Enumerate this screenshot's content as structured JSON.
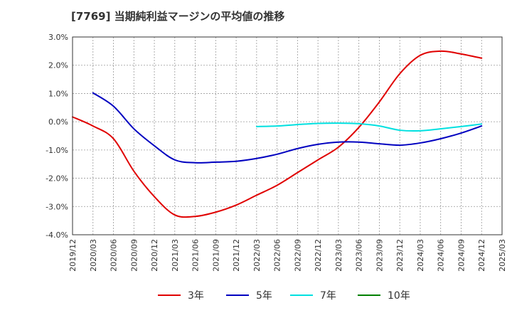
{
  "chart_data": {
    "type": "line",
    "title": "[7769]  当期純利益マージンの平均値の推移",
    "xlabel": "",
    "ylabel": "",
    "ylim": [
      -4.0,
      3.0
    ],
    "yticks": [
      "3.0%",
      "2.0%",
      "1.0%",
      "0.0%",
      "-1.0%",
      "-2.0%",
      "-3.0%",
      "-4.0%"
    ],
    "ytick_values": [
      3.0,
      2.0,
      1.0,
      0.0,
      -1.0,
      -2.0,
      -3.0,
      -4.0
    ],
    "xticks": [
      "2019/12",
      "2020/03",
      "2020/06",
      "2020/09",
      "2020/12",
      "2021/03",
      "2021/06",
      "2021/09",
      "2021/12",
      "2022/03",
      "2022/06",
      "2022/09",
      "2022/12",
      "2023/03",
      "2023/06",
      "2023/09",
      "2023/12",
      "2024/03",
      "2024/06",
      "2024/09",
      "2024/12",
      "2025/03"
    ],
    "grid": true,
    "legend_position": "bottom",
    "series": [
      {
        "name": "3年",
        "color": "#e00000",
        "x": [
          "2019/12",
          "2020/03",
          "2020/06",
          "2020/09",
          "2020/12",
          "2021/03",
          "2021/06",
          "2021/09",
          "2021/12",
          "2022/03",
          "2022/06",
          "2022/09",
          "2022/12",
          "2023/03",
          "2023/06",
          "2023/09",
          "2023/12",
          "2024/03",
          "2024/06",
          "2024/09",
          "2024/12"
        ],
        "values": [
          0.17,
          -0.15,
          -0.6,
          -1.75,
          -2.65,
          -3.3,
          -3.35,
          -3.2,
          -2.95,
          -2.6,
          -2.25,
          -1.8,
          -1.35,
          -0.9,
          -0.2,
          0.7,
          1.7,
          2.35,
          2.5,
          2.4,
          2.25
        ]
      },
      {
        "name": "5年",
        "color": "#0000c0",
        "x": [
          "2020/03",
          "2020/06",
          "2020/09",
          "2020/12",
          "2021/03",
          "2021/06",
          "2021/09",
          "2021/12",
          "2022/03",
          "2022/06",
          "2022/09",
          "2022/12",
          "2023/03",
          "2023/06",
          "2023/09",
          "2023/12",
          "2024/03",
          "2024/06",
          "2024/09",
          "2024/12"
        ],
        "values": [
          1.02,
          0.55,
          -0.25,
          -0.85,
          -1.35,
          -1.45,
          -1.43,
          -1.4,
          -1.3,
          -1.15,
          -0.95,
          -0.8,
          -0.72,
          -0.72,
          -0.78,
          -0.83,
          -0.75,
          -0.6,
          -0.4,
          -0.15
        ]
      },
      {
        "name": "7年",
        "color": "#00e0e0",
        "x": [
          "2022/03",
          "2022/06",
          "2022/09",
          "2022/12",
          "2023/03",
          "2023/06",
          "2023/09",
          "2023/12",
          "2024/03",
          "2024/06",
          "2024/09",
          "2024/12"
        ],
        "values": [
          -0.17,
          -0.15,
          -0.1,
          -0.06,
          -0.05,
          -0.07,
          -0.15,
          -0.3,
          -0.32,
          -0.25,
          -0.17,
          -0.08
        ]
      },
      {
        "name": "10年",
        "color": "#008000",
        "x": [],
        "values": []
      }
    ]
  }
}
